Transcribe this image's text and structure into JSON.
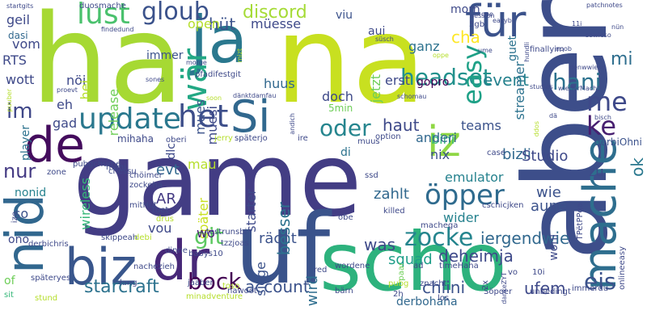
{
  "background": "#ffffff",
  "palette": [
    "#440154",
    "#482878",
    "#3e4989",
    "#31688e",
    "#26828e",
    "#1f9e89",
    "#35b779",
    "#6ece58",
    "#b5de2b",
    "#fde725"
  ],
  "words": [
    {
      "text": "game",
      "color": "#433d84"
    },
    {
      "text": "ha",
      "color": "#a6d933"
    },
    {
      "text": "na",
      "color": "#c8e020"
    },
    {
      "text": "aber",
      "color": "#3d4e8a"
    },
    {
      "text": "uf",
      "color": "#3a538b"
    },
    {
      "text": "scho",
      "color": "#2db27d"
    },
    {
      "text": "nid",
      "color": "#31678e"
    },
    {
      "text": "ja",
      "color": "#2a788e"
    },
    {
      "text": "de",
      "color": "#440c5d"
    },
    {
      "text": "biz",
      "color": "#39568c"
    },
    {
      "text": "dr",
      "color": "#472878"
    },
    {
      "text": "für",
      "color": "#3b528b"
    },
    {
      "text": "mache",
      "color": "#2e6e8e"
    },
    {
      "text": "Si",
      "color": "#31688e"
    },
    {
      "text": "iz",
      "color": "#8fd744"
    },
    {
      "text": "wär",
      "color": "#22a884"
    },
    {
      "text": "update",
      "color": "#2a788e"
    },
    {
      "text": "gloub",
      "color": "#3b528b"
    },
    {
      "text": "lust",
      "color": "#4ac16d"
    },
    {
      "text": "het",
      "color": "#3d4e8a"
    },
    {
      "text": "zocke",
      "color": "#25858e"
    },
    {
      "text": "öpper",
      "color": "#2f6b8e"
    },
    {
      "text": "bock",
      "color": "#440154"
    },
    {
      "text": "headset",
      "color": "#21918c"
    },
    {
      "text": "easy",
      "color": "#1fa187"
    },
    {
      "text": "oder",
      "color": "#25858e"
    },
    {
      "text": "me",
      "color": "#3e4989"
    },
    {
      "text": "ke",
      "color": "#481f70"
    },
    {
      "text": "eis",
      "color": "#3b528b"
    },
    {
      "text": "hani",
      "color": "#2c728e"
    },
    {
      "text": "im",
      "color": "#3f4788"
    },
    {
      "text": "git",
      "color": "#5ec962"
    },
    {
      "text": "discord",
      "color": "#a5db36"
    },
    {
      "text": "starcraft",
      "color": "#2c728e"
    },
    {
      "text": "account",
      "color": "#3b528b"
    },
    {
      "text": "nur",
      "color": "#443a83"
    },
    {
      "text": "mi",
      "color": "#2e6e8e"
    },
    {
      "text": "ok",
      "color": "#2a788e"
    },
    {
      "text": "hüt",
      "color": "#3b528b"
    },
    {
      "text": "event",
      "color": "#26828e"
    },
    {
      "text": "cha",
      "color": "#fde725"
    },
    {
      "text": "haut",
      "color": "#3e4989"
    },
    {
      "text": "bizli",
      "color": "#31688e"
    },
    {
      "text": "Studio",
      "color": "#3e4989"
    },
    {
      "text": "iergendwie",
      "color": "#31688e"
    },
    {
      "text": "rächt",
      "color": "#3b528b"
    },
    {
      "text": "was",
      "color": "#3e4989"
    },
    {
      "text": "squad",
      "color": "#1f9e89"
    },
    {
      "text": "siege",
      "color": "#3b528b"
    },
    {
      "text": "deheimja",
      "color": "#3e4989"
    },
    {
      "text": "ufem",
      "color": "#3e4989"
    },
    {
      "text": "chlini",
      "color": "#3b528b"
    },
    {
      "text": "derbohaha",
      "color": "#31688e"
    },
    {
      "text": "zahlt",
      "color": "#31688e"
    },
    {
      "text": "wie",
      "color": "#3b528b"
    },
    {
      "text": "aune",
      "color": "#3b528b"
    },
    {
      "text": "wider",
      "color": "#26828e"
    },
    {
      "text": "besser",
      "color": "#2c728e"
    },
    {
      "text": "starter",
      "color": "#3e4989"
    },
    {
      "text": "später",
      "color": "#c8e020"
    },
    {
      "text": "wird",
      "color": "#2e6e8e"
    },
    {
      "text": "vou",
      "color": "#3e4989"
    },
    {
      "text": "wo",
      "color": "#481f70"
    },
    {
      "text": "AR",
      "color": "#443a83"
    },
    {
      "text": "evt",
      "color": "#31688e"
    },
    {
      "text": "mau",
      "color": "#b5de2b"
    },
    {
      "text": "bini",
      "color": "#35b779"
    },
    {
      "text": "anderi",
      "color": "#31688e"
    },
    {
      "text": "nix",
      "color": "#3b528b"
    },
    {
      "text": "di",
      "color": "#2c728e"
    },
    {
      "text": "emulator",
      "color": "#26828e"
    },
    {
      "text": "zu",
      "color": "#3e4989"
    },
    {
      "text": "teams",
      "color": "#3b528b"
    },
    {
      "text": "doch",
      "color": "#3e4989"
    },
    {
      "text": "5min",
      "color": "#6ece58"
    },
    {
      "text": "jetzt",
      "color": "#6ece58"
    },
    {
      "text": "streamer",
      "color": "#2c728e"
    },
    {
      "text": "erst",
      "color": "#3e4989"
    },
    {
      "text": "gopro",
      "color": "#440154"
    },
    {
      "text": "ganz",
      "color": "#2c728e"
    },
    {
      "text": "mues",
      "color": "#3b528b"
    },
    {
      "text": "muesi",
      "color": "#3e4989"
    },
    {
      "text": "huus",
      "color": "#31688e"
    },
    {
      "text": "müesse",
      "color": "#3e4989"
    },
    {
      "text": "aui",
      "color": "#3e4989"
    },
    {
      "text": "viu",
      "color": "#3b528b"
    },
    {
      "text": "morn",
      "color": "#3e4989"
    },
    {
      "text": "guet",
      "color": "#2c728e"
    },
    {
      "text": "open",
      "color": "#b5de2b"
    },
    {
      "text": "release",
      "color": "#6ece58"
    },
    {
      "text": "immer",
      "color": "#3b528b"
    },
    {
      "text": "nöi",
      "color": "#3e4989"
    },
    {
      "text": "hei",
      "color": "#b5de2b"
    },
    {
      "text": "geil",
      "color": "#3e4989"
    },
    {
      "text": "vom",
      "color": "#3e4989"
    },
    {
      "text": "RTS",
      "color": "#3e4989"
    },
    {
      "text": "dasi",
      "color": "#31688e"
    },
    {
      "text": "wott",
      "color": "#3e4989"
    },
    {
      "text": "eh",
      "color": "#3e4989"
    },
    {
      "text": "gad",
      "color": "#3e4989"
    },
    {
      "text": "player",
      "color": "#2c728e"
    },
    {
      "text": "mihaha",
      "color": "#3e4989"
    },
    {
      "text": "dlc",
      "color": "#3e4989"
    },
    {
      "text": "wireless",
      "color": "#35b779"
    },
    {
      "text": "nonid",
      "color": "#26828e"
    },
    {
      "text": "ono",
      "color": "#3e4989"
    },
    {
      "text": "of",
      "color": "#6ece58"
    },
    {
      "text": "so",
      "color": "#3b528b"
    },
    {
      "text": "woni",
      "color": "#3e4989"
    },
    {
      "text": "derbiOhni",
      "color": "#3b528b"
    },
    {
      "text": "finallyim",
      "color": "#3e4989"
    },
    {
      "text": "sit",
      "color": "#35b779"
    },
    {
      "text": "stund",
      "color": "#b5de2b"
    },
    {
      "text": "späteryes",
      "color": "#3e4989"
    },
    {
      "text": "derbichris",
      "color": "#3e4989"
    },
    {
      "text": "dinne",
      "color": "#3e4989"
    },
    {
      "text": "babys10",
      "color": "#3e4989"
    },
    {
      "text": "lang",
      "color": "#3e4989"
    },
    {
      "text": "nachezieh",
      "color": "#3e4989"
    },
    {
      "text": "skippeah",
      "color": "#3e4989"
    },
    {
      "text": "mitHüt",
      "color": "#3e4989"
    },
    {
      "text": "zockeha",
      "color": "#3e4989"
    },
    {
      "text": "chöimer",
      "color": "#3e4989"
    },
    {
      "text": "chessu",
      "color": "#3e4989"
    },
    {
      "text": "mani",
      "color": "#3e4989"
    },
    {
      "text": "pubgchume",
      "color": "#3e4989"
    },
    {
      "text": "oberi",
      "color": "#3e4989"
    },
    {
      "text": "jerry",
      "color": "#b5de2b"
    },
    {
      "text": "späterjo",
      "color": "#3e4989"
    },
    {
      "text": "ire",
      "color": "#3e4989"
    },
    {
      "text": "option",
      "color": "#3e4989"
    },
    {
      "text": "muus",
      "color": "#3e4989"
    },
    {
      "text": "case",
      "color": "#3e4989"
    },
    {
      "text": "ssd",
      "color": "#3e4989"
    },
    {
      "text": "killed",
      "color": "#3e4989"
    },
    {
      "text": "obe",
      "color": "#3e4989"
    },
    {
      "text": "cschicjken",
      "color": "#3e4989"
    },
    {
      "text": "machega",
      "color": "#3e4989"
    },
    {
      "text": "testrunsbi",
      "color": "#3e4989"
    },
    {
      "text": "tzzjoas",
      "color": "#3e4989"
    },
    {
      "text": "paar",
      "color": "#6ece58"
    },
    {
      "text": "wordene",
      "color": "#3e4989"
    },
    {
      "text": "ad",
      "color": "#3e4989"
    },
    {
      "text": "timeHaha",
      "color": "#3e4989"
    },
    {
      "text": "10i",
      "color": "#3e4989"
    },
    {
      "text": "vo",
      "color": "#3e4989"
    },
    {
      "text": "immerdu",
      "color": "#3e4989"
    },
    {
      "text": "onlineeasy",
      "color": "#3e4989"
    },
    {
      "text": "unbedingt",
      "color": "#3e4989"
    },
    {
      "text": "Söpoer",
      "color": "#3e4989"
    },
    {
      "text": "2x",
      "color": "#3e4989"
    },
    {
      "text": "los",
      "color": "#3e4989"
    },
    {
      "text": "znacht",
      "color": "#3e4989"
    },
    {
      "text": "pubg",
      "color": "#b5de2b"
    },
    {
      "text": "2h",
      "color": "#3e4989"
    },
    {
      "text": "bärn",
      "color": "#3e4989"
    },
    {
      "text": "red",
      "color": "#3e4989"
    },
    {
      "text": "jaaber",
      "color": "#3e4989"
    },
    {
      "text": "toso",
      "color": "#b5de2b"
    },
    {
      "text": "nawoot",
      "color": "#3e4989"
    },
    {
      "text": "minadventure",
      "color": "#b5de2b"
    },
    {
      "text": "debi",
      "color": "#b5de2b"
    },
    {
      "text": "drus",
      "color": "#b5de2b"
    },
    {
      "text": "tuet",
      "color": "#3e4989"
    },
    {
      "text": "zone",
      "color": "#3e4989"
    },
    {
      "text": "ize",
      "color": "#3e4989"
    },
    {
      "text": "dankeZYT",
      "color": "#3e4989"
    },
    {
      "text": "TPëtPPga",
      "color": "#3e4989"
    },
    {
      "text": "startgits",
      "color": "#3e4989"
    },
    {
      "text": "duosmache",
      "color": "#3e4989"
    },
    {
      "text": "findedund",
      "color": "#3e4989"
    },
    {
      "text": "morge",
      "color": "#3e4989"
    },
    {
      "text": "pfadifestgit",
      "color": "#3e4989"
    },
    {
      "text": "mizt",
      "color": "#b5de2b"
    },
    {
      "text": "dänktdamfau",
      "color": "#3e4989"
    },
    {
      "text": "sones",
      "color": "#3e4989"
    },
    {
      "text": "soon",
      "color": "#b5de2b"
    },
    {
      "text": "proevt",
      "color": "#3e4989"
    },
    {
      "text": "puuber",
      "color": "#b5de2b"
    },
    {
      "text": "schomau",
      "color": "#3e4989"
    },
    {
      "text": "andich",
      "color": "#3e4989"
    },
    {
      "text": "dä",
      "color": "#3e4989"
    },
    {
      "text": "ddos",
      "color": "#b5de2b"
    },
    {
      "text": "wiederMacht",
      "color": "#3e4989"
    },
    {
      "text": "bisch",
      "color": "#3e4989"
    },
    {
      "text": "studies",
      "color": "#3e4989"
    },
    {
      "text": "denwwieso",
      "color": "#3e4989"
    },
    {
      "text": "noob",
      "color": "#3e4989"
    },
    {
      "text": "hundli",
      "color": "#3e4989"
    },
    {
      "text": "ume",
      "color": "#3e4989"
    },
    {
      "text": "oppe",
      "color": "#b5de2b"
    },
    {
      "text": "süsch",
      "color": "#3e4989"
    },
    {
      "text": "5gb",
      "color": "#3e4989"
    },
    {
      "text": "session",
      "color": "#3e4989"
    },
    {
      "text": "one",
      "color": "#3e4989"
    },
    {
      "text": "easybi",
      "color": "#3e4989"
    },
    {
      "text": "patchnotes",
      "color": "#3e4989"
    },
    {
      "text": "11i",
      "color": "#3e4989"
    },
    {
      "text": "nün",
      "color": "#3e4989"
    },
    {
      "text": "sowieso",
      "color": "#3e4989"
    }
  ]
}
